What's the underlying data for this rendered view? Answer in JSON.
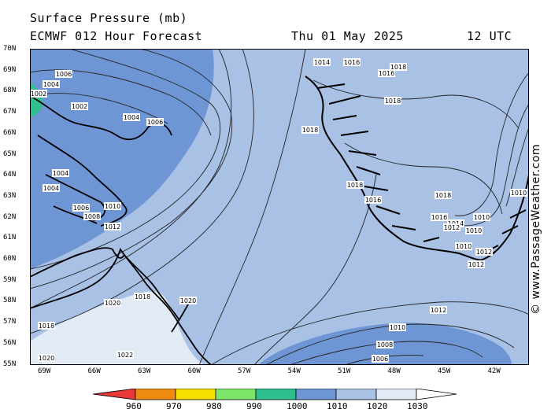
{
  "header": {
    "title": "Surface Pressure (mb)",
    "model": "ECMWF 012 Hour Forecast",
    "date": "Thu 01 May 2025",
    "time": "12 UTC"
  },
  "map": {
    "lat_ticks": [
      "70N",
      "69N",
      "68N",
      "67N",
      "66N",
      "65N",
      "64N",
      "63N",
      "62N",
      "61N",
      "60N",
      "59N",
      "58N",
      "57N",
      "56N",
      "55N"
    ],
    "lon_ticks": [
      "69W",
      "66W",
      "63W",
      "60W",
      "57W",
      "54W",
      "51W",
      "48W",
      "45W",
      "42W"
    ],
    "colors": {
      "p1000_1010": "#6f96d4",
      "p1010_1020": "#a8c1e5",
      "p1020_1030": "#e2eaf6",
      "p990_1000": "#2fbf8f",
      "land_outline": "#000000",
      "isobar": "#222222"
    },
    "isobar_labels": [
      {
        "text": "1006"
      },
      {
        "text": "1004"
      },
      {
        "text": "1002"
      },
      {
        "text": "1002"
      },
      {
        "text": "1004"
      },
      {
        "text": "1006"
      },
      {
        "text": "1004"
      },
      {
        "text": "1004"
      },
      {
        "text": "1006"
      },
      {
        "text": "1008"
      },
      {
        "text": "1010"
      },
      {
        "text": "1012"
      },
      {
        "text": "1014"
      },
      {
        "text": "1016"
      },
      {
        "text": "1016"
      },
      {
        "text": "1018"
      },
      {
        "text": "1018"
      },
      {
        "text": "1018"
      },
      {
        "text": "1018"
      },
      {
        "text": "1016"
      },
      {
        "text": "1018"
      },
      {
        "text": "1016"
      },
      {
        "text": "1014"
      },
      {
        "text": "1012"
      },
      {
        "text": "1010"
      },
      {
        "text": "1010"
      },
      {
        "text": "1010"
      },
      {
        "text": "1012"
      },
      {
        "text": "1012"
      },
      {
        "text": "1010"
      },
      {
        "text": "1018"
      },
      {
        "text": "1020"
      },
      {
        "text": "1020"
      },
      {
        "text": "1018"
      },
      {
        "text": "1020"
      },
      {
        "text": "1022"
      },
      {
        "text": "1012"
      },
      {
        "text": "1010"
      },
      {
        "text": "1008"
      },
      {
        "text": "1006"
      }
    ]
  },
  "colorbar": {
    "ticks": [
      "960",
      "970",
      "980",
      "990",
      "1000",
      "1010",
      "1020",
      "1030"
    ],
    "colors": [
      "#e8383a",
      "#f08b12",
      "#f6e000",
      "#7de66a",
      "#2fbf8f",
      "#6f96d4",
      "#a8c1e5",
      "#e2eaf6",
      "#ffffff"
    ]
  },
  "credit": "© www.PassageWeather.com"
}
